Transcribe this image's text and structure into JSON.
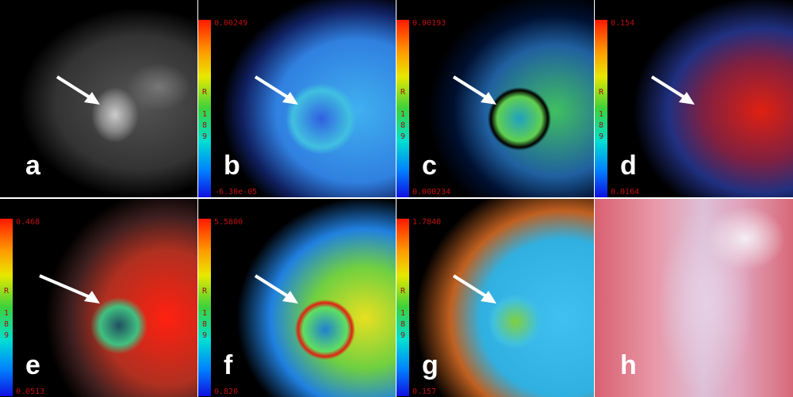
{
  "panels": [
    {
      "letter": "a",
      "type": "grayscale-mri"
    },
    {
      "letter": "b",
      "type": "colormap",
      "max": "0.00249",
      "min": "-6.30e-05",
      "scale_label": "R",
      "scale_digits": [
        "1",
        "8",
        "9"
      ]
    },
    {
      "letter": "c",
      "type": "colormap",
      "max": "0.00193",
      "min": "0.000234",
      "scale_label": "R",
      "scale_digits": [
        "1",
        "8",
        "9"
      ]
    },
    {
      "letter": "d",
      "type": "colormap",
      "max": "0.154",
      "min": "0.0164",
      "scale_label": "R",
      "scale_digits": [
        "1",
        "8",
        "9"
      ]
    },
    {
      "letter": "e",
      "type": "colormap",
      "max": "0.468",
      "min": "0.0513",
      "scale_label": "R",
      "scale_digits": [
        "1",
        "8",
        "9"
      ]
    },
    {
      "letter": "f",
      "type": "colormap",
      "max": "5.5800",
      "min": "0.820",
      "scale_label": "R",
      "scale_digits": [
        "1",
        "8",
        "9"
      ]
    },
    {
      "letter": "g",
      "type": "colormap",
      "max": "1.7840",
      "min": "0.157",
      "scale_label": "R",
      "scale_digits": [
        "1",
        "8",
        "9"
      ]
    },
    {
      "letter": "h",
      "type": "histology"
    }
  ],
  "colors": {
    "scale_text": "#c01010",
    "arrow": "#ffffff",
    "histology": "#e8a0b0"
  }
}
